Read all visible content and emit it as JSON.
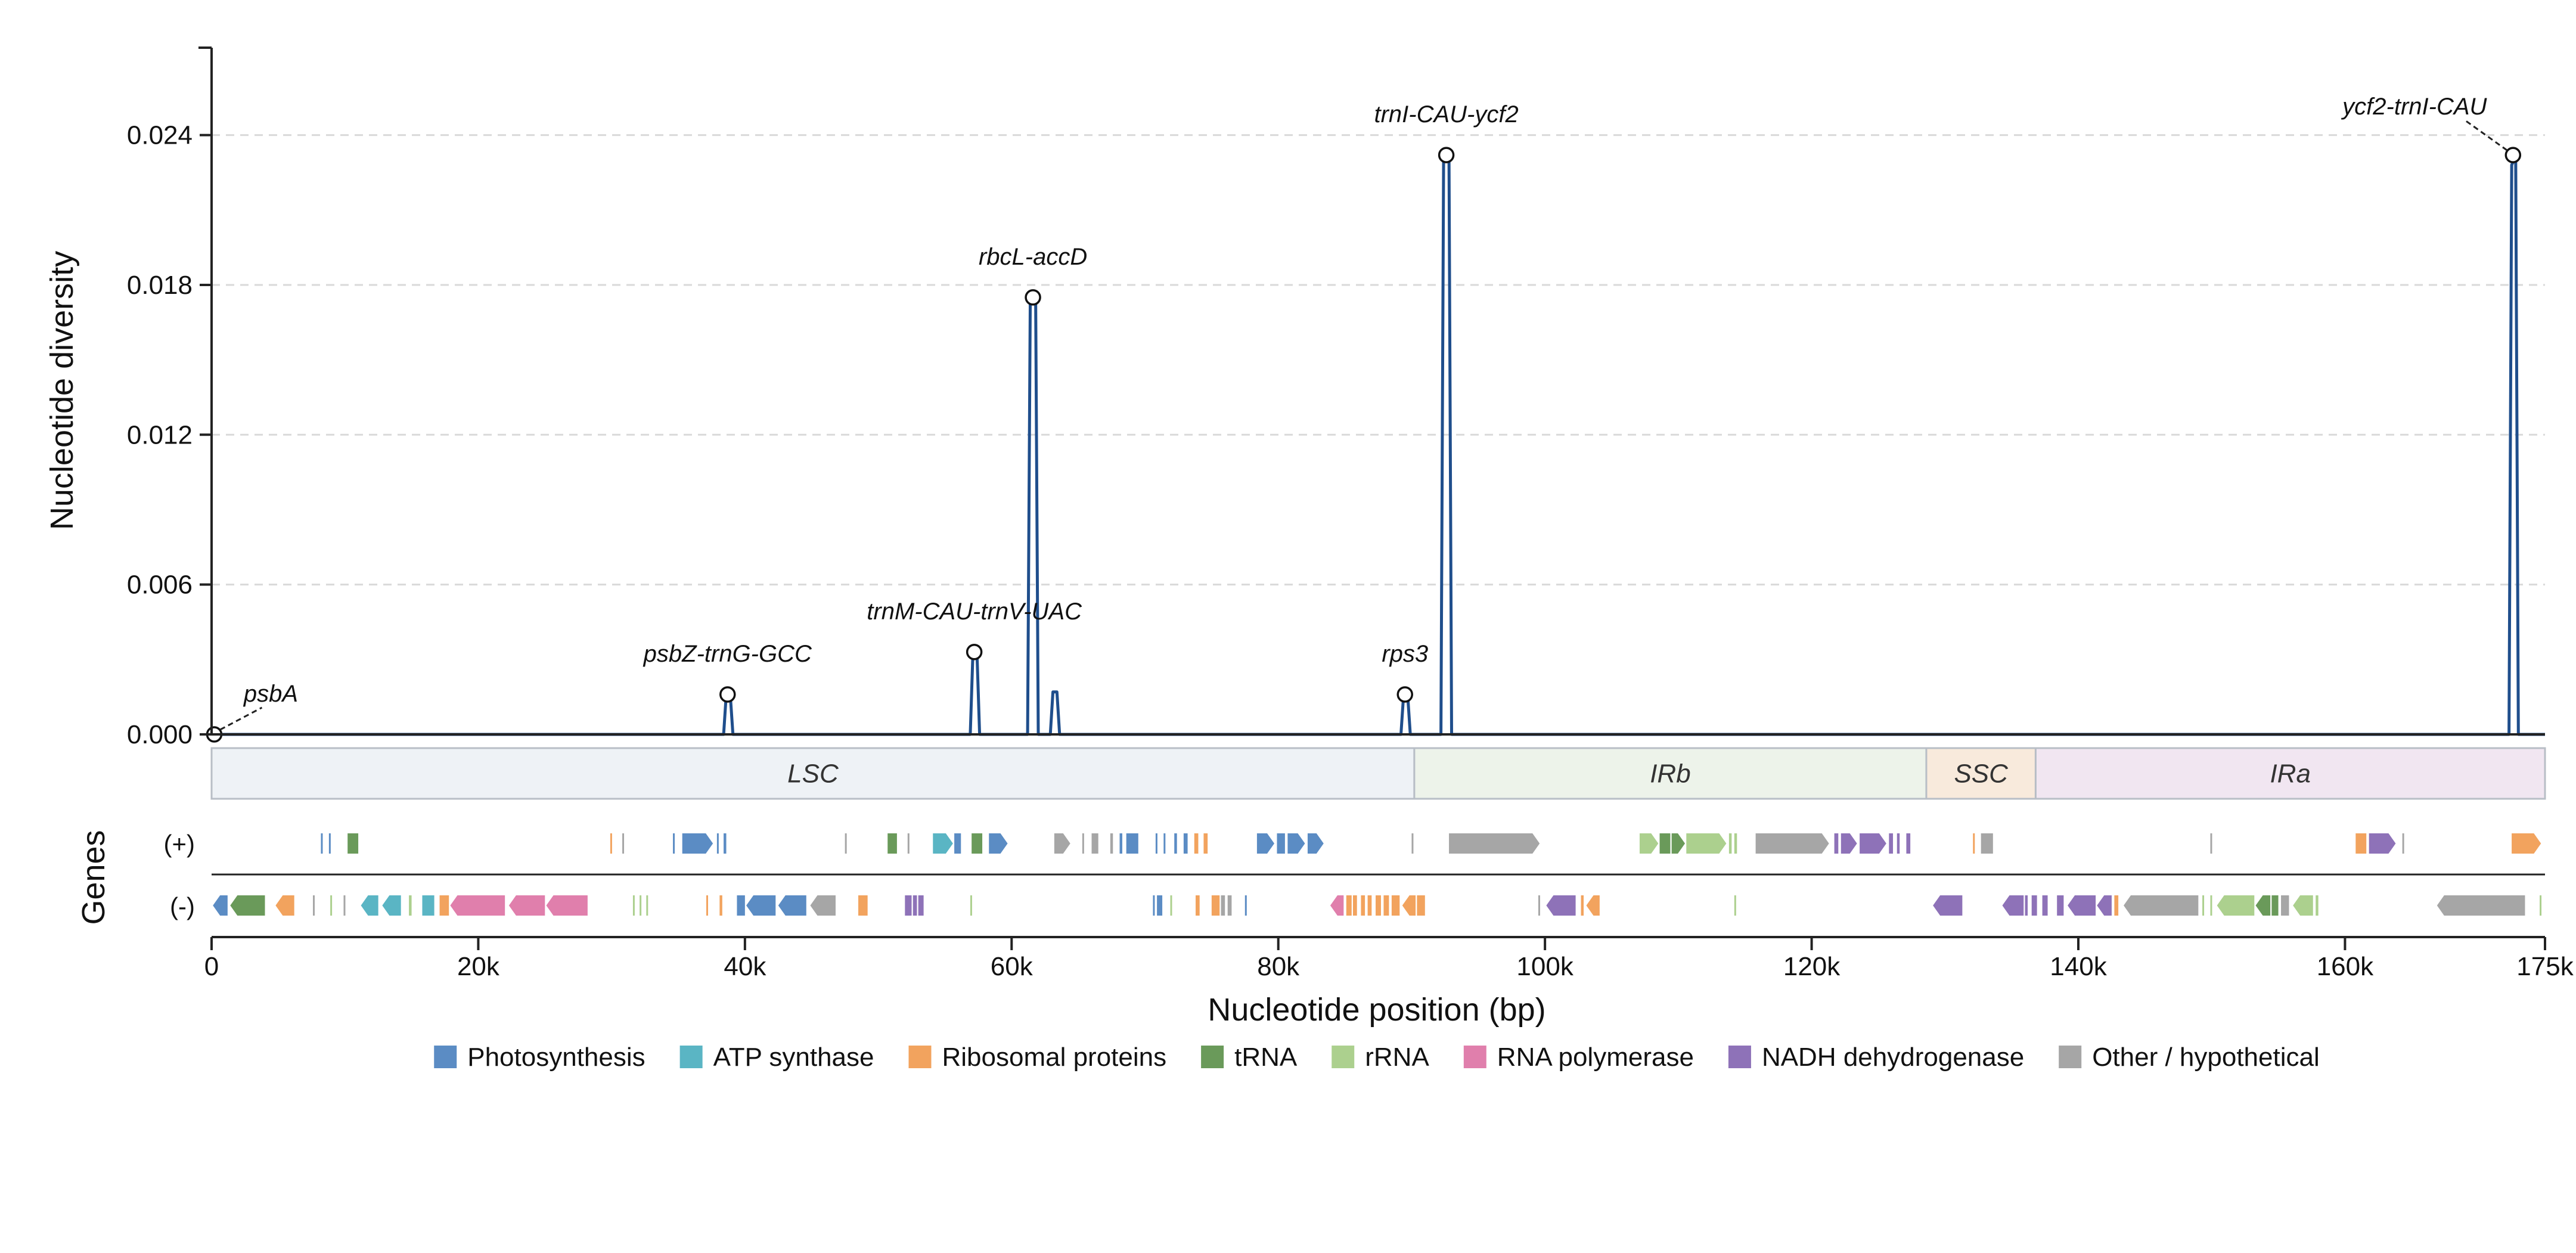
{
  "chart_data": {
    "type": "line",
    "ylabel": "Nucleotide diversity",
    "xlabel": "Nucleotide position (bp)",
    "genes_label": "Genes",
    "xlim": [
      0,
      175000
    ],
    "ylim": [
      0,
      0.0275
    ],
    "yticks": [
      {
        "value": 0,
        "label": "0.000"
      },
      {
        "value": 0.006,
        "label": "0.006"
      },
      {
        "value": 0.012,
        "label": "0.012"
      },
      {
        "value": 0.018,
        "label": "0.018"
      },
      {
        "value": 0.024,
        "label": "0.024"
      }
    ],
    "xticks": [
      {
        "value": 0,
        "label": "0"
      },
      {
        "value": 20000,
        "label": "20k"
      },
      {
        "value": 40000,
        "label": "40k"
      },
      {
        "value": 60000,
        "label": "60k"
      },
      {
        "value": 80000,
        "label": "80k"
      },
      {
        "value": 100000,
        "label": "100k"
      },
      {
        "value": 120000,
        "label": "120k"
      },
      {
        "value": 140000,
        "label": "140k"
      },
      {
        "value": 160000,
        "label": "160k"
      },
      {
        "value": 175000,
        "label": "175k"
      }
    ],
    "grid": "horizontal dashed",
    "line_color": "#1f4e8c",
    "series": [
      {
        "values": [
          [
            0,
            0
          ],
          [
            38400,
            0
          ],
          [
            38600,
            0.0016
          ],
          [
            38900,
            0.0016
          ],
          [
            39100,
            0
          ],
          [
            56900,
            0
          ],
          [
            57100,
            0.0033
          ],
          [
            57400,
            0.0033
          ],
          [
            57600,
            0
          ],
          [
            61200,
            0
          ],
          [
            61400,
            0.0175
          ],
          [
            61800,
            0.0175
          ],
          [
            62000,
            0
          ],
          [
            62900,
            0
          ],
          [
            63100,
            0.0017
          ],
          [
            63400,
            0.0017
          ],
          [
            63600,
            0
          ],
          [
            89200,
            0
          ],
          [
            89400,
            0.0016
          ],
          [
            89700,
            0.0016
          ],
          [
            89900,
            0
          ],
          [
            92200,
            0
          ],
          [
            92400,
            0.0232
          ],
          [
            92800,
            0.0232
          ],
          [
            93000,
            0
          ],
          [
            172300,
            0
          ],
          [
            172500,
            0.0228
          ],
          [
            172800,
            0.0232
          ],
          [
            173000,
            0
          ],
          [
            175000,
            0
          ]
        ]
      }
    ],
    "annotations": [
      {
        "label": "psbA",
        "x": 200,
        "y": 0.0,
        "leader": true
      },
      {
        "label": "psbZ-trnG-GCC",
        "x": 38700,
        "y": 0.0016,
        "leader": false
      },
      {
        "label": "trnM-CAU-trnV-UAC",
        "x": 57200,
        "y": 0.0033,
        "leader": false
      },
      {
        "label": "rbcL-accD",
        "x": 61600,
        "y": 0.0175,
        "leader": false
      },
      {
        "label": "rps3",
        "x": 89500,
        "y": 0.0016,
        "leader": false
      },
      {
        "label": "trnI-CAU-ycf2",
        "x": 92600,
        "y": 0.0232,
        "leader": false
      },
      {
        "label": "ycf2-trnI-CAU",
        "x": 172600,
        "y": 0.0232,
        "leader": true
      }
    ],
    "regions": [
      {
        "name": "LSC",
        "start": 0,
        "end": 90200,
        "color": "#eef2f6"
      },
      {
        "name": "IRb",
        "start": 90200,
        "end": 128600,
        "color": "#edf3ea"
      },
      {
        "name": "SSC",
        "start": 128600,
        "end": 136800,
        "color": "#f8eadc"
      },
      {
        "name": "IRa",
        "start": 136800,
        "end": 175000,
        "color": "#f1e6f1"
      }
    ],
    "strands": [
      {
        "label": "(+)"
      },
      {
        "label": "(-)"
      }
    ],
    "gene_categories": [
      {
        "name": "Photosynthesis",
        "color": "#5b8cc4"
      },
      {
        "name": "ATP synthase",
        "color": "#5ab5c4"
      },
      {
        "name": "Ribosomal proteins",
        "color": "#f2a35e"
      },
      {
        "name": "tRNA",
        "color": "#6a9a5a"
      },
      {
        "name": "rRNA",
        "color": "#acd08e"
      },
      {
        "name": "RNA polymerase",
        "color": "#e07fac"
      },
      {
        "name": "NADH dehydrogenase",
        "color": "#8e72b8"
      },
      {
        "name": "Other / hypothetical",
        "color": "#a6a6a6"
      }
    ],
    "genes_plus": [
      [
        8200,
        8300,
        0
      ],
      [
        8800,
        8900,
        0
      ],
      [
        10200,
        11000,
        3
      ],
      [
        29900,
        30000,
        2
      ],
      [
        30800,
        30900,
        7
      ],
      [
        34600,
        34700,
        0
      ],
      [
        35300,
        37600,
        0
      ],
      [
        37900,
        38000,
        0
      ],
      [
        38400,
        38600,
        0
      ],
      [
        47500,
        47600,
        7
      ],
      [
        50700,
        51400,
        3
      ],
      [
        52200,
        52300,
        7
      ],
      [
        54100,
        55600,
        1
      ],
      [
        55700,
        56200,
        0
      ],
      [
        57000,
        57800,
        3
      ],
      [
        58300,
        59700,
        0
      ],
      [
        63200,
        64400,
        7
      ],
      [
        65300,
        65400,
        7
      ],
      [
        66000,
        66500,
        7
      ],
      [
        67400,
        67600,
        7
      ],
      [
        68100,
        68300,
        0
      ],
      [
        68600,
        69500,
        0
      ],
      [
        70800,
        70900,
        0
      ],
      [
        71400,
        71500,
        0
      ],
      [
        72200,
        72400,
        0
      ],
      [
        72900,
        73200,
        0
      ],
      [
        73700,
        74000,
        2
      ],
      [
        74400,
        74700,
        2
      ],
      [
        78400,
        79700,
        0
      ],
      [
        79900,
        80500,
        0
      ],
      [
        80700,
        82000,
        0
      ],
      [
        82200,
        83400,
        0
      ],
      [
        90000,
        90100,
        7
      ],
      [
        92800,
        99600,
        7
      ],
      [
        107100,
        108500,
        4
      ],
      [
        108600,
        109400,
        3
      ],
      [
        109500,
        110500,
        3
      ],
      [
        110600,
        113600,
        4
      ],
      [
        113800,
        114000,
        4
      ],
      [
        114200,
        114400,
        4
      ],
      [
        115800,
        121300,
        7
      ],
      [
        121700,
        122000,
        6
      ],
      [
        122200,
        123400,
        6
      ],
      [
        123600,
        125600,
        6
      ],
      [
        125800,
        126100,
        6
      ],
      [
        126400,
        126600,
        6
      ],
      [
        127100,
        127400,
        6
      ],
      [
        132100,
        132200,
        2
      ],
      [
        132700,
        133600,
        7
      ],
      [
        149900,
        150000,
        7
      ],
      [
        160800,
        161600,
        2
      ],
      [
        161800,
        163800,
        6
      ],
      [
        164300,
        164400,
        7
      ],
      [
        172500,
        174700,
        2
      ]
    ],
    "genes_minus": [
      [
        100,
        1200,
        0
      ],
      [
        1400,
        4000,
        3
      ],
      [
        4800,
        6200,
        2
      ],
      [
        7600,
        7700,
        7
      ],
      [
        8900,
        9000,
        4
      ],
      [
        9900,
        10000,
        7
      ],
      [
        11200,
        12500,
        1
      ],
      [
        12800,
        14200,
        1
      ],
      [
        14800,
        15000,
        4
      ],
      [
        15800,
        16700,
        1
      ],
      [
        17100,
        17800,
        2
      ],
      [
        17900,
        22000,
        5
      ],
      [
        22300,
        25000,
        5
      ],
      [
        25100,
        28200,
        5
      ],
      [
        31600,
        31700,
        4
      ],
      [
        32100,
        32200,
        4
      ],
      [
        32600,
        32700,
        4
      ],
      [
        37100,
        37200,
        2
      ],
      [
        38100,
        38300,
        2
      ],
      [
        39400,
        40000,
        0
      ],
      [
        40100,
        42300,
        0
      ],
      [
        42500,
        44600,
        0
      ],
      [
        44900,
        46800,
        7
      ],
      [
        48500,
        49200,
        2
      ],
      [
        52000,
        52500,
        6
      ],
      [
        52600,
        52900,
        6
      ],
      [
        53000,
        53400,
        6
      ],
      [
        56900,
        57000,
        4
      ],
      [
        70600,
        70700,
        0
      ],
      [
        70900,
        71300,
        0
      ],
      [
        71900,
        72000,
        4
      ],
      [
        73800,
        74100,
        2
      ],
      [
        75000,
        75600,
        2
      ],
      [
        75700,
        76000,
        7
      ],
      [
        76200,
        76500,
        7
      ],
      [
        77500,
        77600,
        0
      ],
      [
        83900,
        84900,
        5
      ],
      [
        85100,
        85500,
        2
      ],
      [
        85600,
        85900,
        2
      ],
      [
        86200,
        86500,
        2
      ],
      [
        86700,
        87000,
        2
      ],
      [
        87300,
        87700,
        2
      ],
      [
        87900,
        88300,
        2
      ],
      [
        88500,
        89100,
        2
      ],
      [
        89300,
        90300,
        2
      ],
      [
        90400,
        91000,
        2
      ],
      [
        99500,
        99600,
        7
      ],
      [
        100100,
        102300,
        6
      ],
      [
        102700,
        102900,
        2
      ],
      [
        103100,
        104100,
        2
      ],
      [
        114200,
        114300,
        4
      ],
      [
        129100,
        131300,
        6
      ],
      [
        134300,
        135900,
        6
      ],
      [
        136000,
        136200,
        6
      ],
      [
        136500,
        136900,
        6
      ],
      [
        137300,
        137700,
        6
      ],
      [
        138400,
        138900,
        6
      ],
      [
        139200,
        141300,
        6
      ],
      [
        141400,
        142500,
        6
      ],
      [
        142700,
        143000,
        2
      ],
      [
        143400,
        149000,
        7
      ],
      [
        149300,
        149400,
        4
      ],
      [
        149900,
        150000,
        4
      ],
      [
        150400,
        153200,
        4
      ],
      [
        153300,
        154400,
        3
      ],
      [
        154500,
        155000,
        3
      ],
      [
        155200,
        155800,
        7
      ],
      [
        156100,
        157600,
        4
      ],
      [
        157800,
        158000,
        4
      ],
      [
        166900,
        173500,
        7
      ],
      [
        174600,
        174700,
        4
      ]
    ]
  }
}
